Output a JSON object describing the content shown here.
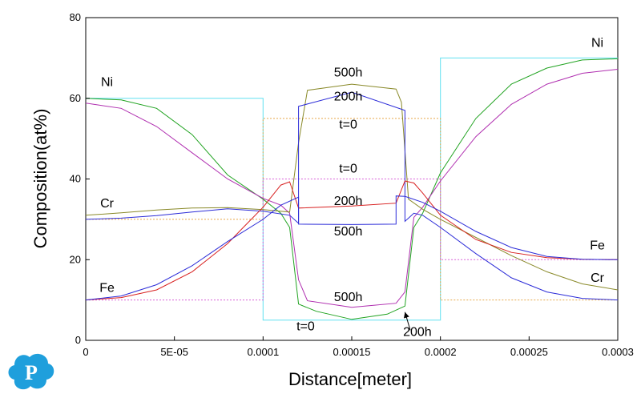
{
  "colors": {
    "ni_final": "#21a321",
    "ni_200h": "#b02fb0",
    "cr_final": "#8a8a2a",
    "cr_200h": "#2c2cd8",
    "fe_final": "#d82020",
    "fe_200h": "#2c2cd8",
    "initial_ni": "#60e0f0",
    "initial_cr": "#e6a84a",
    "initial_fe": "#d860d8",
    "logo": "#1f9fdc"
  },
  "chart_data": {
    "type": "line",
    "title": "",
    "xlabel": "Distance[meter]",
    "ylabel": "Composition(at%)",
    "xlim": [
      0,
      0.0003
    ],
    "ylim": [
      0,
      80
    ],
    "x_ticks": [
      0,
      5e-05,
      0.0001,
      0.00015,
      0.0002,
      0.00025,
      0.0003
    ],
    "x_tick_labels": [
      "0",
      "5E-05",
      "0.0001",
      "0.00015",
      "0.0002",
      "0.00025",
      "0.0003"
    ],
    "y_ticks": [
      0,
      20,
      40,
      60,
      80
    ],
    "y_tick_labels": [
      "0",
      "20",
      "40",
      "60",
      "80"
    ],
    "grid": false,
    "series": [
      {
        "key": "ni_t0",
        "color_key": "initial_ni",
        "dashed": false,
        "x": [
          0,
          0.0001,
          0.0001,
          0.0002,
          0.0002,
          0.0003
        ],
        "y": [
          60,
          60,
          5,
          5,
          70,
          70
        ]
      },
      {
        "key": "cr_t0",
        "color_key": "initial_cr",
        "dashed": true,
        "x": [
          0,
          0.0001,
          0.0001,
          0.0002,
          0.0002,
          0.0003
        ],
        "y": [
          30,
          30,
          55,
          55,
          10,
          10
        ]
      },
      {
        "key": "fe_t0",
        "color_key": "initial_fe",
        "dashed": true,
        "x": [
          0,
          0.0001,
          0.0001,
          0.0002,
          0.0002,
          0.0003
        ],
        "y": [
          10,
          10,
          40,
          40,
          20,
          20
        ]
      },
      {
        "key": "ni_500h",
        "color_key": "ni_final",
        "dashed": false,
        "x": [
          0,
          2e-05,
          4e-05,
          6e-05,
          8e-05,
          0.0001,
          0.00011,
          0.000115,
          0.00012,
          0.00013,
          0.00015,
          0.00017,
          0.00018,
          0.000185,
          0.00019,
          0.0002,
          0.00022,
          0.00024,
          0.00026,
          0.00028,
          0.0003
        ],
        "y": [
          60,
          59.6,
          57.5,
          51,
          41,
          35,
          31.5,
          28,
          9,
          7.2,
          5.2,
          6.5,
          8.5,
          28,
          31.5,
          41.5,
          55,
          63.5,
          67.5,
          69.5,
          69.8
        ]
      },
      {
        "key": "ni_200h",
        "color_key": "ni_200h",
        "dashed": false,
        "x": [
          0,
          2e-05,
          4e-05,
          6e-05,
          8e-05,
          0.0001,
          0.00011,
          0.000115,
          0.00012,
          0.000125,
          0.00015,
          0.000175,
          0.00018,
          0.000185,
          0.00019,
          0.0002,
          0.00022,
          0.00024,
          0.00026,
          0.00028,
          0.0003
        ],
        "y": [
          58.8,
          57.5,
          53,
          46.5,
          40,
          35.2,
          33.5,
          31.5,
          15,
          9.8,
          8.2,
          9.2,
          12,
          30.5,
          33,
          39.5,
          50.5,
          58.5,
          63.5,
          66.2,
          67.2
        ]
      },
      {
        "key": "cr_500h",
        "color_key": "cr_final",
        "dashed": false,
        "x": [
          0,
          2e-05,
          4e-05,
          6e-05,
          8e-05,
          0.0001,
          0.000115,
          0.00012,
          0.000125,
          0.00015,
          0.000175,
          0.000178,
          0.000182,
          0.00019,
          0.0002,
          0.00022,
          0.00024,
          0.00026,
          0.00028,
          0.0003
        ],
        "y": [
          31,
          31.6,
          32.3,
          32.8,
          32.9,
          32.4,
          31.8,
          49,
          62,
          63.5,
          62.3,
          59,
          35,
          32.5,
          30,
          25.5,
          21,
          17,
          14,
          12.5
        ]
      },
      {
        "key": "cr_200h",
        "color_key": "cr_200h",
        "dashed": false,
        "x": [
          0,
          2e-05,
          4e-05,
          6e-05,
          8e-05,
          0.0001,
          0.000115,
          0.00012,
          0.00012,
          0.00015,
          0.00018,
          0.00018,
          0.000185,
          0.00019,
          0.0002,
          0.00022,
          0.00024,
          0.00026,
          0.00028,
          0.0003
        ],
        "y": [
          30,
          30.3,
          30.9,
          31.8,
          32.6,
          32,
          31,
          29,
          58,
          61.5,
          57,
          29.5,
          31.5,
          31,
          28,
          21.5,
          15.5,
          12,
          10.4,
          10
        ]
      },
      {
        "key": "fe_500h",
        "color_key": "fe_final",
        "dashed": false,
        "x": [
          0,
          2e-05,
          4e-05,
          6e-05,
          8e-05,
          9e-05,
          0.0001,
          0.00011,
          0.000115,
          0.00012,
          0.00015,
          0.000175,
          0.00018,
          0.000185,
          0.00019,
          0.0002,
          0.00022,
          0.00024,
          0.00026,
          0.00028,
          0.0003
        ],
        "y": [
          10,
          10.6,
          12.5,
          17,
          24,
          28.5,
          33,
          38.5,
          39.3,
          32.8,
          33.3,
          34,
          39.5,
          39,
          36.5,
          31,
          25,
          21.8,
          20.5,
          20.1,
          20
        ]
      },
      {
        "key": "fe_200h",
        "color_key": "fe_200h",
        "dashed": false,
        "x": [
          0,
          2e-05,
          4e-05,
          6e-05,
          8e-05,
          0.0001,
          0.00011,
          0.00012,
          0.00012,
          0.00015,
          0.000175,
          0.000175,
          0.00018,
          0.00019,
          0.0002,
          0.00022,
          0.00024,
          0.00026,
          0.00028,
          0.0003
        ],
        "y": [
          10,
          11,
          13.8,
          18.5,
          24.5,
          30,
          33.5,
          35.5,
          28.8,
          28.7,
          28.8,
          35.8,
          35.7,
          34.2,
          32,
          27,
          23,
          20.8,
          20.1,
          20
        ]
      }
    ],
    "annotations": [
      {
        "text": "Ni",
        "x": 1.2e-05,
        "y": 63
      },
      {
        "text": "Cr",
        "x": 1.2e-05,
        "y": 33
      },
      {
        "text": "Fe",
        "x": 1.2e-05,
        "y": 12
      },
      {
        "text": "Ni",
        "x": 0.0002885,
        "y": 72.8
      },
      {
        "text": "Fe",
        "x": 0.0002885,
        "y": 22.5
      },
      {
        "text": "Cr",
        "x": 0.0002885,
        "y": 14.5
      },
      {
        "text": "500h",
        "x": 0.000148,
        "y": 65.4
      },
      {
        "text": "200h",
        "x": 0.000148,
        "y": 59.5
      },
      {
        "text": "t=0",
        "x": 0.000148,
        "y": 52.5
      },
      {
        "text": "t=0",
        "x": 0.000148,
        "y": 41.6
      },
      {
        "text": "200h",
        "x": 0.000148,
        "y": 33.5
      },
      {
        "text": "500h",
        "x": 0.000148,
        "y": 26
      },
      {
        "text": "500h",
        "x": 0.000148,
        "y": 9.7
      },
      {
        "text": "t=0",
        "x": 0.000124,
        "y": 2.5
      },
      {
        "text": "200h",
        "x": 0.000187,
        "y": 1.1
      }
    ],
    "arrow": {
      "from": [
        0.000183,
        2.5
      ],
      "to": [
        0.00018,
        7
      ]
    }
  }
}
